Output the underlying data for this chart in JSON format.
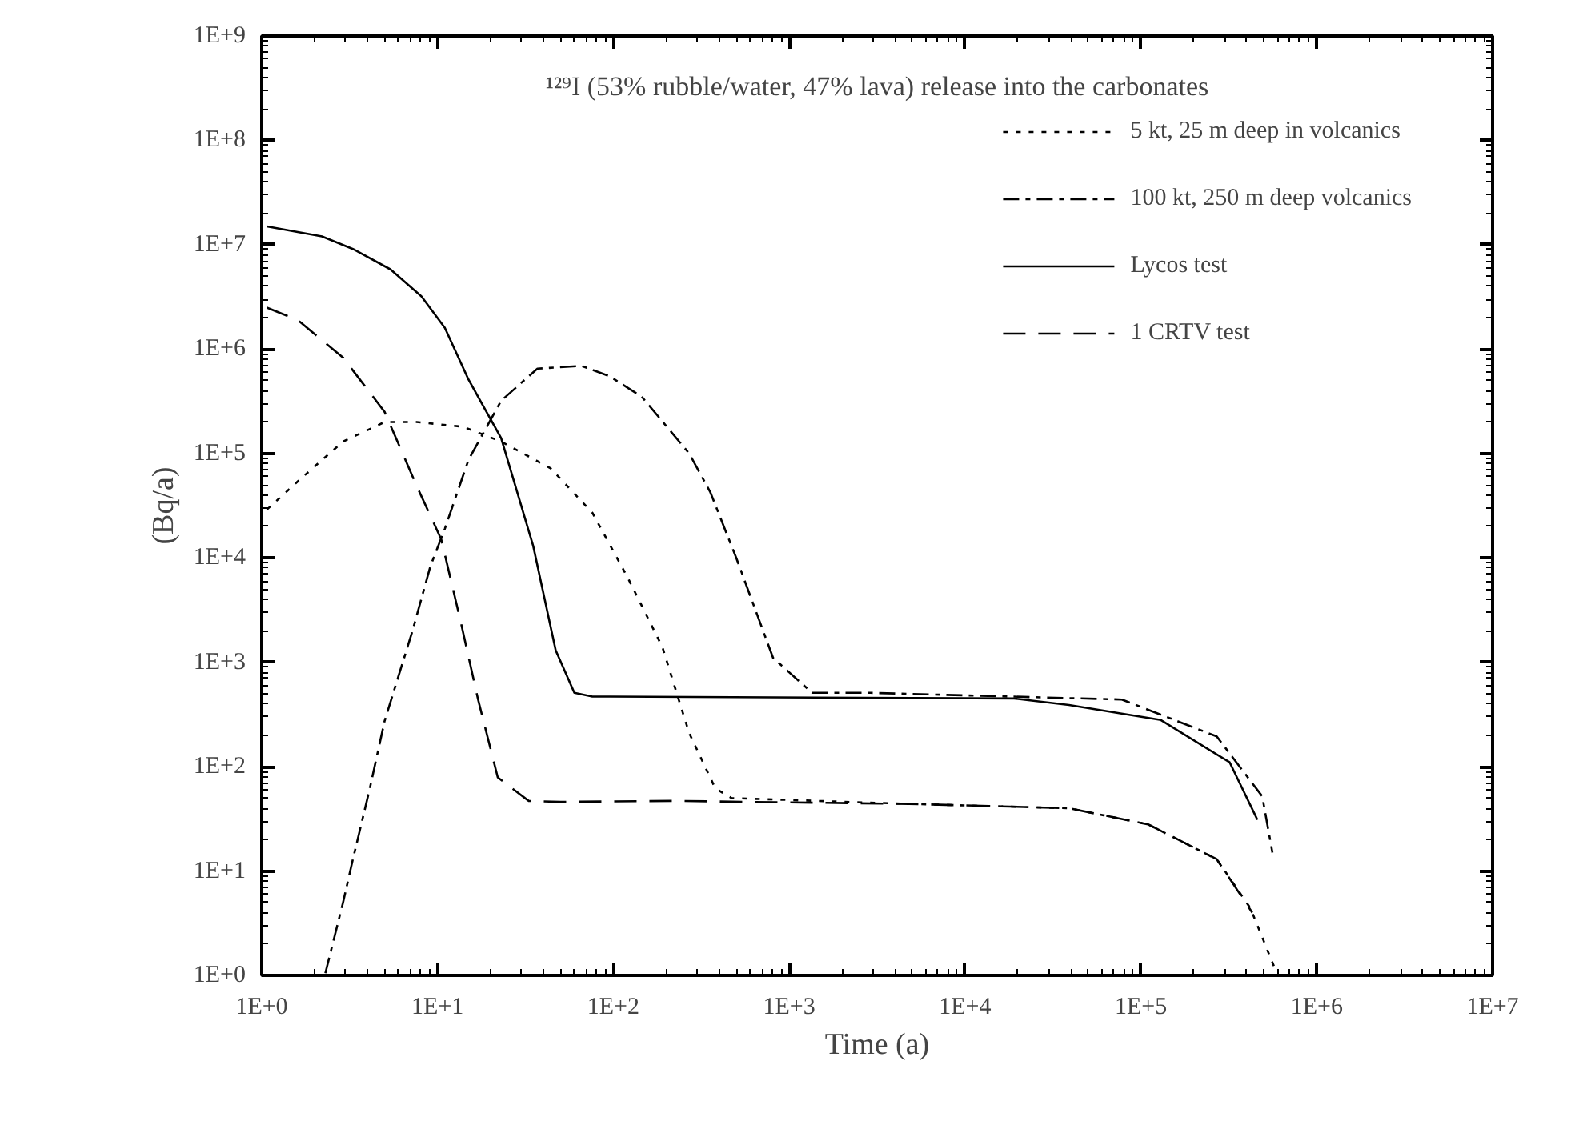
{
  "chart_data": {
    "type": "line",
    "title": "¹²⁹I (53% rubble/water, 47% lava) release into the carbonates",
    "xlabel": "Time (a)",
    "ylabel": "(Bq/a)",
    "log": "xy",
    "grid": false,
    "legend": "top right",
    "marker": "none",
    "xlim": [
      1,
      10000000
    ],
    "ylim": [
      1,
      1000000000
    ],
    "xticks": [
      {
        "value": 1,
        "label": "1E+0"
      },
      {
        "value": 10,
        "label": "1E+1"
      },
      {
        "value": 100,
        "label": "1E+2"
      },
      {
        "value": 1000,
        "label": "1E+3"
      },
      {
        "value": 10000,
        "label": "1E+4"
      },
      {
        "value": 100000,
        "label": "1E+5"
      },
      {
        "value": 1000000,
        "label": "1E+6"
      },
      {
        "value": 10000000,
        "label": "1E+7"
      }
    ],
    "yticks": [
      {
        "value": 1,
        "label": "1E+0"
      },
      {
        "value": 10,
        "label": "1E+1"
      },
      {
        "value": 100,
        "label": "1E+2"
      },
      {
        "value": 1000,
        "label": "1E+3"
      },
      {
        "value": 10000,
        "label": "1E+4"
      },
      {
        "value": 100000,
        "label": "1E+5"
      },
      {
        "value": 1000000,
        "label": "1E+6"
      },
      {
        "value": 10000000,
        "label": "1E+7"
      },
      {
        "value": 100000000,
        "label": "1E+8"
      },
      {
        "value": 1000000000,
        "label": "1E+9"
      }
    ],
    "series": [
      {
        "name": "5 kt, 25 m deep in volcanics",
        "color": "#000000",
        "line_style": "dotted",
        "x": [
          1.07,
          1.7,
          2.9,
          5.0,
          7.6,
          14,
          23,
          44,
          76,
          120,
          190,
          270,
          380,
          470,
          4800,
          39000,
          110000,
          270000,
          420000,
          590000
        ],
        "values": [
          29000,
          59000,
          130000,
          200000,
          200000,
          180000,
          130000,
          72000,
          27000,
          6600,
          1400,
          210,
          62,
          50,
          44,
          40,
          28,
          13,
          4.4,
          1.07
        ]
      },
      {
        "name": "100 kt, 250 m deep volcanics",
        "color": "#000000",
        "line_style": "dashdot",
        "x": [
          2.3,
          2.9,
          3.3,
          4.1,
          5.0,
          7.2,
          9.1,
          11,
          15,
          23,
          37,
          66,
          95,
          145,
          270,
          355,
          500,
          810,
          1350,
          2900,
          78000,
          270000,
          490000,
          560000
        ],
        "values": [
          1.05,
          5.0,
          13,
          60,
          275,
          2000,
          8300,
          19000,
          87000,
          320000,
          650000,
          690000,
          550000,
          350000,
          100000,
          43000,
          10000,
          1100,
          510,
          510,
          440,
          195,
          52,
          15
        ]
      },
      {
        "name": "Lycos test",
        "color": "#000000",
        "line_style": "solid",
        "x": [
          1.07,
          2.2,
          3.3,
          5.4,
          8.1,
          11,
          15,
          23,
          35,
          47,
          60,
          76,
          19000,
          39000,
          130000,
          320000,
          460000
        ],
        "values": [
          15000000,
          12000000,
          9100000,
          5800000,
          3200000,
          1600000,
          510000,
          140000,
          13000,
          1300,
          510,
          470,
          450,
          390,
          280,
          110,
          31
        ]
      },
      {
        "name": "1 CRTV test",
        "color": "#000000",
        "line_style": "dashed",
        "x": [
          1.07,
          1.6,
          2.9,
          5.0,
          7.6,
          10.5,
          13.5,
          17,
          22,
          33,
          50,
          220,
          4800,
          39000,
          110000,
          270000,
          430000
        ],
        "values": [
          2500000,
          1900000,
          830000,
          250000,
          49000,
          15000,
          2500,
          440,
          79,
          47,
          46,
          47,
          44,
          40,
          28,
          13,
          4.0
        ]
      }
    ]
  }
}
